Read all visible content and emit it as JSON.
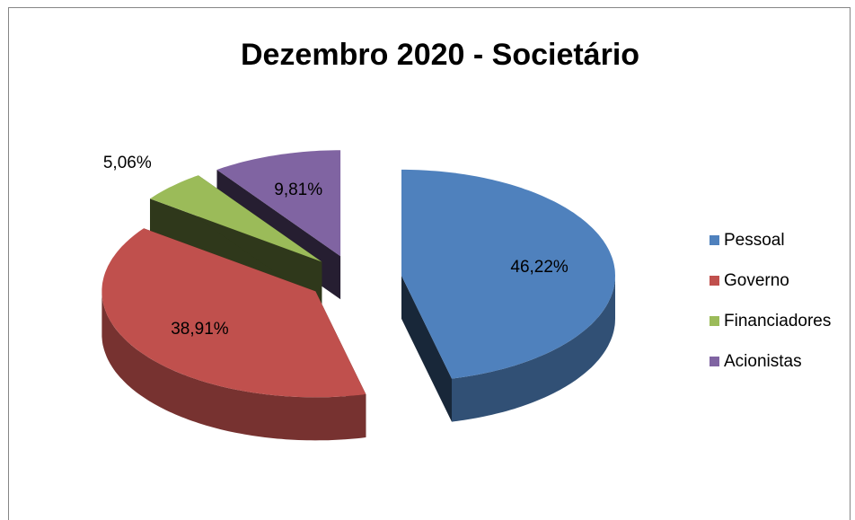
{
  "chart_data": {
    "type": "pie3d",
    "title": "Dezembro 2020 - Societário",
    "categories": [
      "Pessoal",
      "Governo",
      "Financiadores",
      "Acionistas"
    ],
    "values": [
      46.22,
      38.91,
      5.06,
      9.81
    ],
    "value_labels": [
      "46,22%",
      "38,91%",
      "5,06%",
      "9,81%"
    ],
    "colors": [
      "#4f81bd",
      "#c0504d",
      "#9bbb59",
      "#8064a2"
    ],
    "legend": "right"
  }
}
